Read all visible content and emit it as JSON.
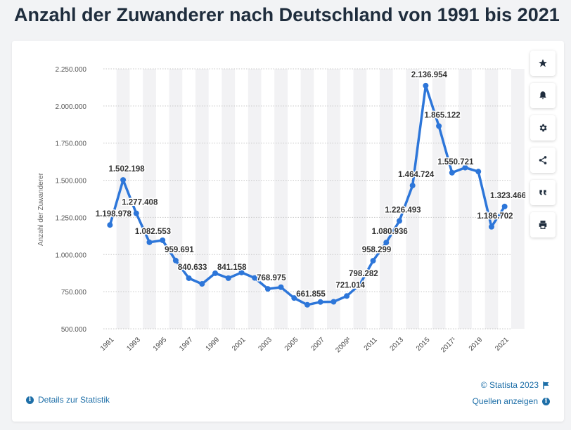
{
  "page": {
    "title": "Anzahl der Zuwanderer nach Deutschland von 1991 bis 2021"
  },
  "footer": {
    "copyright": "© Statista 2023",
    "details_label": "Details zur Statistik",
    "sources_label": "Quellen anzeigen"
  },
  "toolbar": {
    "icons": [
      "star-icon",
      "bell-icon",
      "gear-icon",
      "share-icon",
      "quote-icon",
      "print-icon"
    ]
  },
  "colors": {
    "line": "#2d76d9",
    "band": "#f2f2f4",
    "text": "#333333",
    "link": "#1e6fa8"
  },
  "chart_data": {
    "type": "line",
    "title": "",
    "xlabel": "",
    "ylabel": "Anzahl der Zuwanderer",
    "ylim": [
      500000,
      2250000
    ],
    "y_ticks": [
      500000,
      750000,
      1000000,
      1250000,
      1500000,
      1750000,
      2000000,
      2250000
    ],
    "y_tick_labels": [
      "500.000",
      "750.000",
      "1.000.000",
      "1.250.000",
      "1.500.000",
      "1.750.000",
      "2.000.000",
      "2.250.000"
    ],
    "x_tick_labels": [
      "1991",
      "1993",
      "1995",
      "1997",
      "1999",
      "2001",
      "2003",
      "2005",
      "2007",
      "2009³",
      "2011",
      "2013",
      "2015",
      "2017¹",
      "2019",
      "2021"
    ],
    "grid": "horizontal",
    "series": [
      {
        "x": [
          1991,
          1992,
          1993,
          1994,
          1995,
          1996,
          1997,
          1998,
          1999,
          2000,
          2001,
          2002,
          2003,
          2004,
          2005,
          2006,
          2007,
          2008,
          2009,
          2010,
          2011,
          2012,
          2013,
          2014,
          2015,
          2016,
          2017,
          2018,
          2019,
          2020,
          2021
        ],
        "values": [
          1198978,
          1502198,
          1277408,
          1082553,
          1096048,
          959691,
          840633,
          802456,
          874023,
          841158,
          879217,
          842543,
          768975,
          780175,
          707352,
          661855,
          680766,
          682146,
          721014,
          798282,
          958299,
          1080936,
          1226493,
          1464724,
          2136954,
          1865122,
          1550721,
          1585112,
          1558612,
          1186702,
          1323466
        ]
      }
    ],
    "data_labels": [
      {
        "x": 1991,
        "label": "1.198.978"
      },
      {
        "x": 1992,
        "label": "1.502.198"
      },
      {
        "x": 1993,
        "label": "1.277.408"
      },
      {
        "x": 1994,
        "label": "1.082.553"
      },
      {
        "x": 1996,
        "label": "959.691"
      },
      {
        "x": 1997,
        "label": "840.633"
      },
      {
        "x": 2000,
        "label": "841.158"
      },
      {
        "x": 2003,
        "label": "768.975"
      },
      {
        "x": 2006,
        "label": "661.855"
      },
      {
        "x": 2009,
        "label": "721.014"
      },
      {
        "x": 2010,
        "label": "798.282"
      },
      {
        "x": 2011,
        "label": "958.299"
      },
      {
        "x": 2012,
        "label": "1.080.936"
      },
      {
        "x": 2013,
        "label": "1.226.493"
      },
      {
        "x": 2014,
        "label": "1.464.724"
      },
      {
        "x": 2015,
        "label": "2.136.954"
      },
      {
        "x": 2016,
        "label": "1.865.122"
      },
      {
        "x": 2017,
        "label": "1.550.721"
      },
      {
        "x": 2020,
        "label": "1.186.702"
      },
      {
        "x": 2021,
        "label": "1.323.466"
      }
    ]
  }
}
